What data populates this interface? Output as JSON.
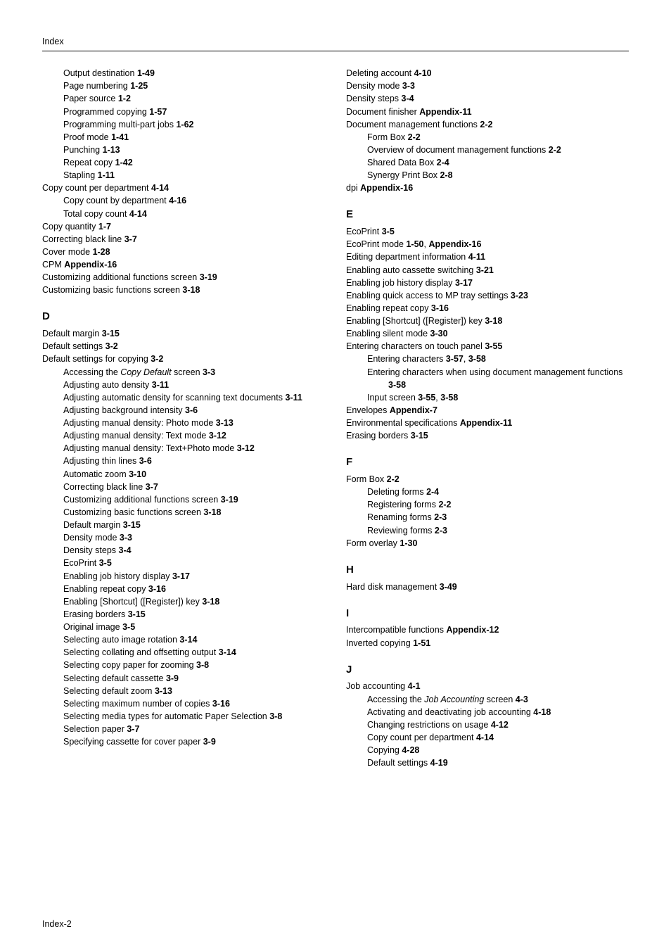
{
  "header": {
    "title": "Index"
  },
  "footer": {
    "page": "Index-2"
  },
  "left": {
    "pre_entries": [
      {
        "indent": 1,
        "text": "Output destination ",
        "ref": "1-49"
      },
      {
        "indent": 1,
        "text": "Page numbering ",
        "ref": "1-25"
      },
      {
        "indent": 1,
        "text": "Paper source ",
        "ref": "1-2"
      },
      {
        "indent": 1,
        "text": "Programmed copying ",
        "ref": "1-57"
      },
      {
        "indent": 1,
        "text": "Programming multi-part jobs ",
        "ref": "1-62"
      },
      {
        "indent": 1,
        "text": "Proof mode ",
        "ref": "1-41"
      },
      {
        "indent": 1,
        "text": "Punching ",
        "ref": "1-13"
      },
      {
        "indent": 1,
        "text": "Repeat copy ",
        "ref": "1-42"
      },
      {
        "indent": 1,
        "text": "Stapling ",
        "ref": "1-11"
      },
      {
        "indent": 0,
        "text": "Copy count per department ",
        "ref": "4-14"
      },
      {
        "indent": 1,
        "text": "Copy count by department ",
        "ref": "4-16"
      },
      {
        "indent": 1,
        "text": "Total copy count ",
        "ref": "4-14"
      },
      {
        "indent": 0,
        "text": "Copy quantity ",
        "ref": "1-7"
      },
      {
        "indent": 0,
        "text": "Correcting black line ",
        "ref": "3-7"
      },
      {
        "indent": 0,
        "text": "Cover mode ",
        "ref": "1-28"
      },
      {
        "indent": 0,
        "text": "CPM ",
        "ref": "Appendix-16"
      },
      {
        "indent": 0,
        "text": "Customizing additional functions screen ",
        "ref": "3-19"
      },
      {
        "indent": 0,
        "text": "Customizing basic functions screen ",
        "ref": "3-18"
      }
    ],
    "sections": [
      {
        "letter": "D",
        "entries": [
          {
            "indent": 0,
            "text": "Default margin ",
            "ref": "3-15"
          },
          {
            "indent": 0,
            "text": "Default settings ",
            "ref": "3-2"
          },
          {
            "indent": 0,
            "text": "Default settings for copying ",
            "ref": "3-2"
          },
          {
            "indent": 1,
            "italic_prefix": "Accessing the ",
            "italic": "Copy Default",
            "italic_suffix": " screen ",
            "ref": "3-3"
          },
          {
            "indent": 1,
            "text": "Adjusting auto density ",
            "ref": "3-11"
          },
          {
            "indent": 1,
            "text": "Adjusting automatic density for scanning text documents ",
            "ref": "3-11"
          },
          {
            "indent": 1,
            "text": "Adjusting background intensity ",
            "ref": "3-6"
          },
          {
            "indent": 1,
            "text": "Adjusting manual density: Photo mode ",
            "ref": "3-13"
          },
          {
            "indent": 1,
            "text": "Adjusting manual density: Text mode ",
            "ref": "3-12"
          },
          {
            "indent": 1,
            "text": "Adjusting manual density: Text+Photo mode ",
            "ref": "3-12"
          },
          {
            "indent": 1,
            "text": "Adjusting thin lines ",
            "ref": "3-6"
          },
          {
            "indent": 1,
            "text": "Automatic zoom ",
            "ref": "3-10"
          },
          {
            "indent": 1,
            "text": "Correcting black line ",
            "ref": "3-7"
          },
          {
            "indent": 1,
            "text": "Customizing additional functions screen ",
            "ref": "3-19"
          },
          {
            "indent": 1,
            "text": "Customizing basic functions screen ",
            "ref": "3-18"
          },
          {
            "indent": 1,
            "text": "Default margin ",
            "ref": "3-15"
          },
          {
            "indent": 1,
            "text": "Density mode ",
            "ref": "3-3"
          },
          {
            "indent": 1,
            "text": "Density steps ",
            "ref": "3-4"
          },
          {
            "indent": 1,
            "text": "EcoPrint ",
            "ref": "3-5"
          },
          {
            "indent": 1,
            "text": "Enabling job history display ",
            "ref": "3-17"
          },
          {
            "indent": 1,
            "text": "Enabling repeat copy ",
            "ref": "3-16"
          },
          {
            "indent": 1,
            "text": "Enabling [Shortcut] ([Register]) key ",
            "ref": "3-18"
          },
          {
            "indent": 1,
            "text": "Erasing borders ",
            "ref": "3-15"
          },
          {
            "indent": 1,
            "text": "Original image ",
            "ref": "3-5"
          },
          {
            "indent": 1,
            "text": "Selecting auto image rotation ",
            "ref": "3-14"
          },
          {
            "indent": 1,
            "text": "Selecting collating and offsetting output ",
            "ref": "3-14"
          },
          {
            "indent": 1,
            "text": "Selecting copy paper for zooming ",
            "ref": "3-8"
          },
          {
            "indent": 1,
            "text": "Selecting default cassette ",
            "ref": "3-9"
          },
          {
            "indent": 1,
            "text": "Selecting default zoom ",
            "ref": "3-13"
          },
          {
            "indent": 1,
            "text": "Selecting maximum number of copies ",
            "ref": "3-16"
          },
          {
            "indent": 1,
            "text": "Selecting media types for automatic Paper Selection ",
            "ref": "3-8"
          },
          {
            "indent": 1,
            "text": "Selection paper ",
            "ref": "3-7"
          },
          {
            "indent": 1,
            "text": "Specifying cassette for cover paper ",
            "ref": "3-9"
          }
        ]
      }
    ]
  },
  "right": {
    "pre_entries": [
      {
        "indent": 0,
        "text": "Deleting account ",
        "ref": "4-10"
      },
      {
        "indent": 0,
        "text": "Density mode ",
        "ref": "3-3"
      },
      {
        "indent": 0,
        "text": "Density steps ",
        "ref": "3-4"
      },
      {
        "indent": 0,
        "text": "Document finisher ",
        "ref": "Appendix-11"
      },
      {
        "indent": 0,
        "text": "Document management functions ",
        "ref": "2-2"
      },
      {
        "indent": 1,
        "text": "Form Box ",
        "ref": "2-2"
      },
      {
        "indent": 1,
        "text": "Overview of document management functions ",
        "ref": "2-2"
      },
      {
        "indent": 1,
        "text": "Shared Data Box ",
        "ref": "2-4"
      },
      {
        "indent": 1,
        "text": "Synergy Print Box ",
        "ref": "2-8"
      },
      {
        "indent": 0,
        "text": "dpi ",
        "ref": "Appendix-16"
      }
    ],
    "sections": [
      {
        "letter": "E",
        "entries": [
          {
            "indent": 0,
            "text": "EcoPrint ",
            "ref": "3-5"
          },
          {
            "indent": 0,
            "text": "EcoPrint mode ",
            "ref": "1-50",
            "sep": ", ",
            "ref2": "Appendix-16"
          },
          {
            "indent": 0,
            "text": "Editing department information ",
            "ref": "4-11"
          },
          {
            "indent": 0,
            "text": "Enabling auto cassette switching ",
            "ref": "3-21"
          },
          {
            "indent": 0,
            "text": "Enabling job history display ",
            "ref": "3-17"
          },
          {
            "indent": 0,
            "text": "Enabling quick access to MP tray settings ",
            "ref": "3-23"
          },
          {
            "indent": 0,
            "text": "Enabling repeat copy ",
            "ref": "3-16"
          },
          {
            "indent": 0,
            "text": "Enabling [Shortcut] ([Register]) key ",
            "ref": "3-18"
          },
          {
            "indent": 0,
            "text": "Enabling silent mode ",
            "ref": "3-30"
          },
          {
            "indent": 0,
            "text": "Entering characters on touch panel ",
            "ref": "3-55"
          },
          {
            "indent": 1,
            "text": "Entering characters ",
            "ref": "3-57",
            "sep": ", ",
            "ref2": "3-58"
          },
          {
            "indent": 1,
            "text": "Entering characters when using document management functions ",
            "ref": "3-58"
          },
          {
            "indent": 1,
            "text": "Input screen ",
            "ref": "3-55",
            "sep": ", ",
            "ref2": "3-58"
          },
          {
            "indent": 0,
            "text": "Envelopes ",
            "ref": "Appendix-7"
          },
          {
            "indent": 0,
            "text": "Environmental specifications ",
            "ref": "Appendix-11"
          },
          {
            "indent": 0,
            "text": "Erasing borders ",
            "ref": "3-15"
          }
        ]
      },
      {
        "letter": "F",
        "entries": [
          {
            "indent": 0,
            "text": "Form Box ",
            "ref": "2-2"
          },
          {
            "indent": 1,
            "text": "Deleting forms ",
            "ref": "2-4"
          },
          {
            "indent": 1,
            "text": "Registering forms ",
            "ref": "2-2"
          },
          {
            "indent": 1,
            "text": "Renaming forms ",
            "ref": "2-3"
          },
          {
            "indent": 1,
            "text": "Reviewing forms ",
            "ref": "2-3"
          },
          {
            "indent": 0,
            "text": "Form overlay ",
            "ref": "1-30"
          }
        ]
      },
      {
        "letter": "H",
        "entries": [
          {
            "indent": 0,
            "text": "Hard disk management ",
            "ref": "3-49"
          }
        ]
      },
      {
        "letter": "I",
        "entries": [
          {
            "indent": 0,
            "text": "Intercompatible functions ",
            "ref": "Appendix-12"
          },
          {
            "indent": 0,
            "text": "Inverted copying ",
            "ref": "1-51"
          }
        ]
      },
      {
        "letter": "J",
        "entries": [
          {
            "indent": 0,
            "text": "Job accounting ",
            "ref": "4-1"
          },
          {
            "indent": 1,
            "italic_prefix": "Accessing the ",
            "italic": "Job Accounting",
            "italic_suffix": " screen ",
            "ref": "4-3"
          },
          {
            "indent": 1,
            "text": "Activating and deactivating job accounting ",
            "ref": "4-18"
          },
          {
            "indent": 1,
            "text": "Changing restrictions on usage ",
            "ref": "4-12"
          },
          {
            "indent": 1,
            "text": "Copy count per department ",
            "ref": "4-14"
          },
          {
            "indent": 1,
            "text": "Copying ",
            "ref": "4-28"
          },
          {
            "indent": 1,
            "text": "Default settings ",
            "ref": "4-19"
          }
        ]
      }
    ]
  }
}
